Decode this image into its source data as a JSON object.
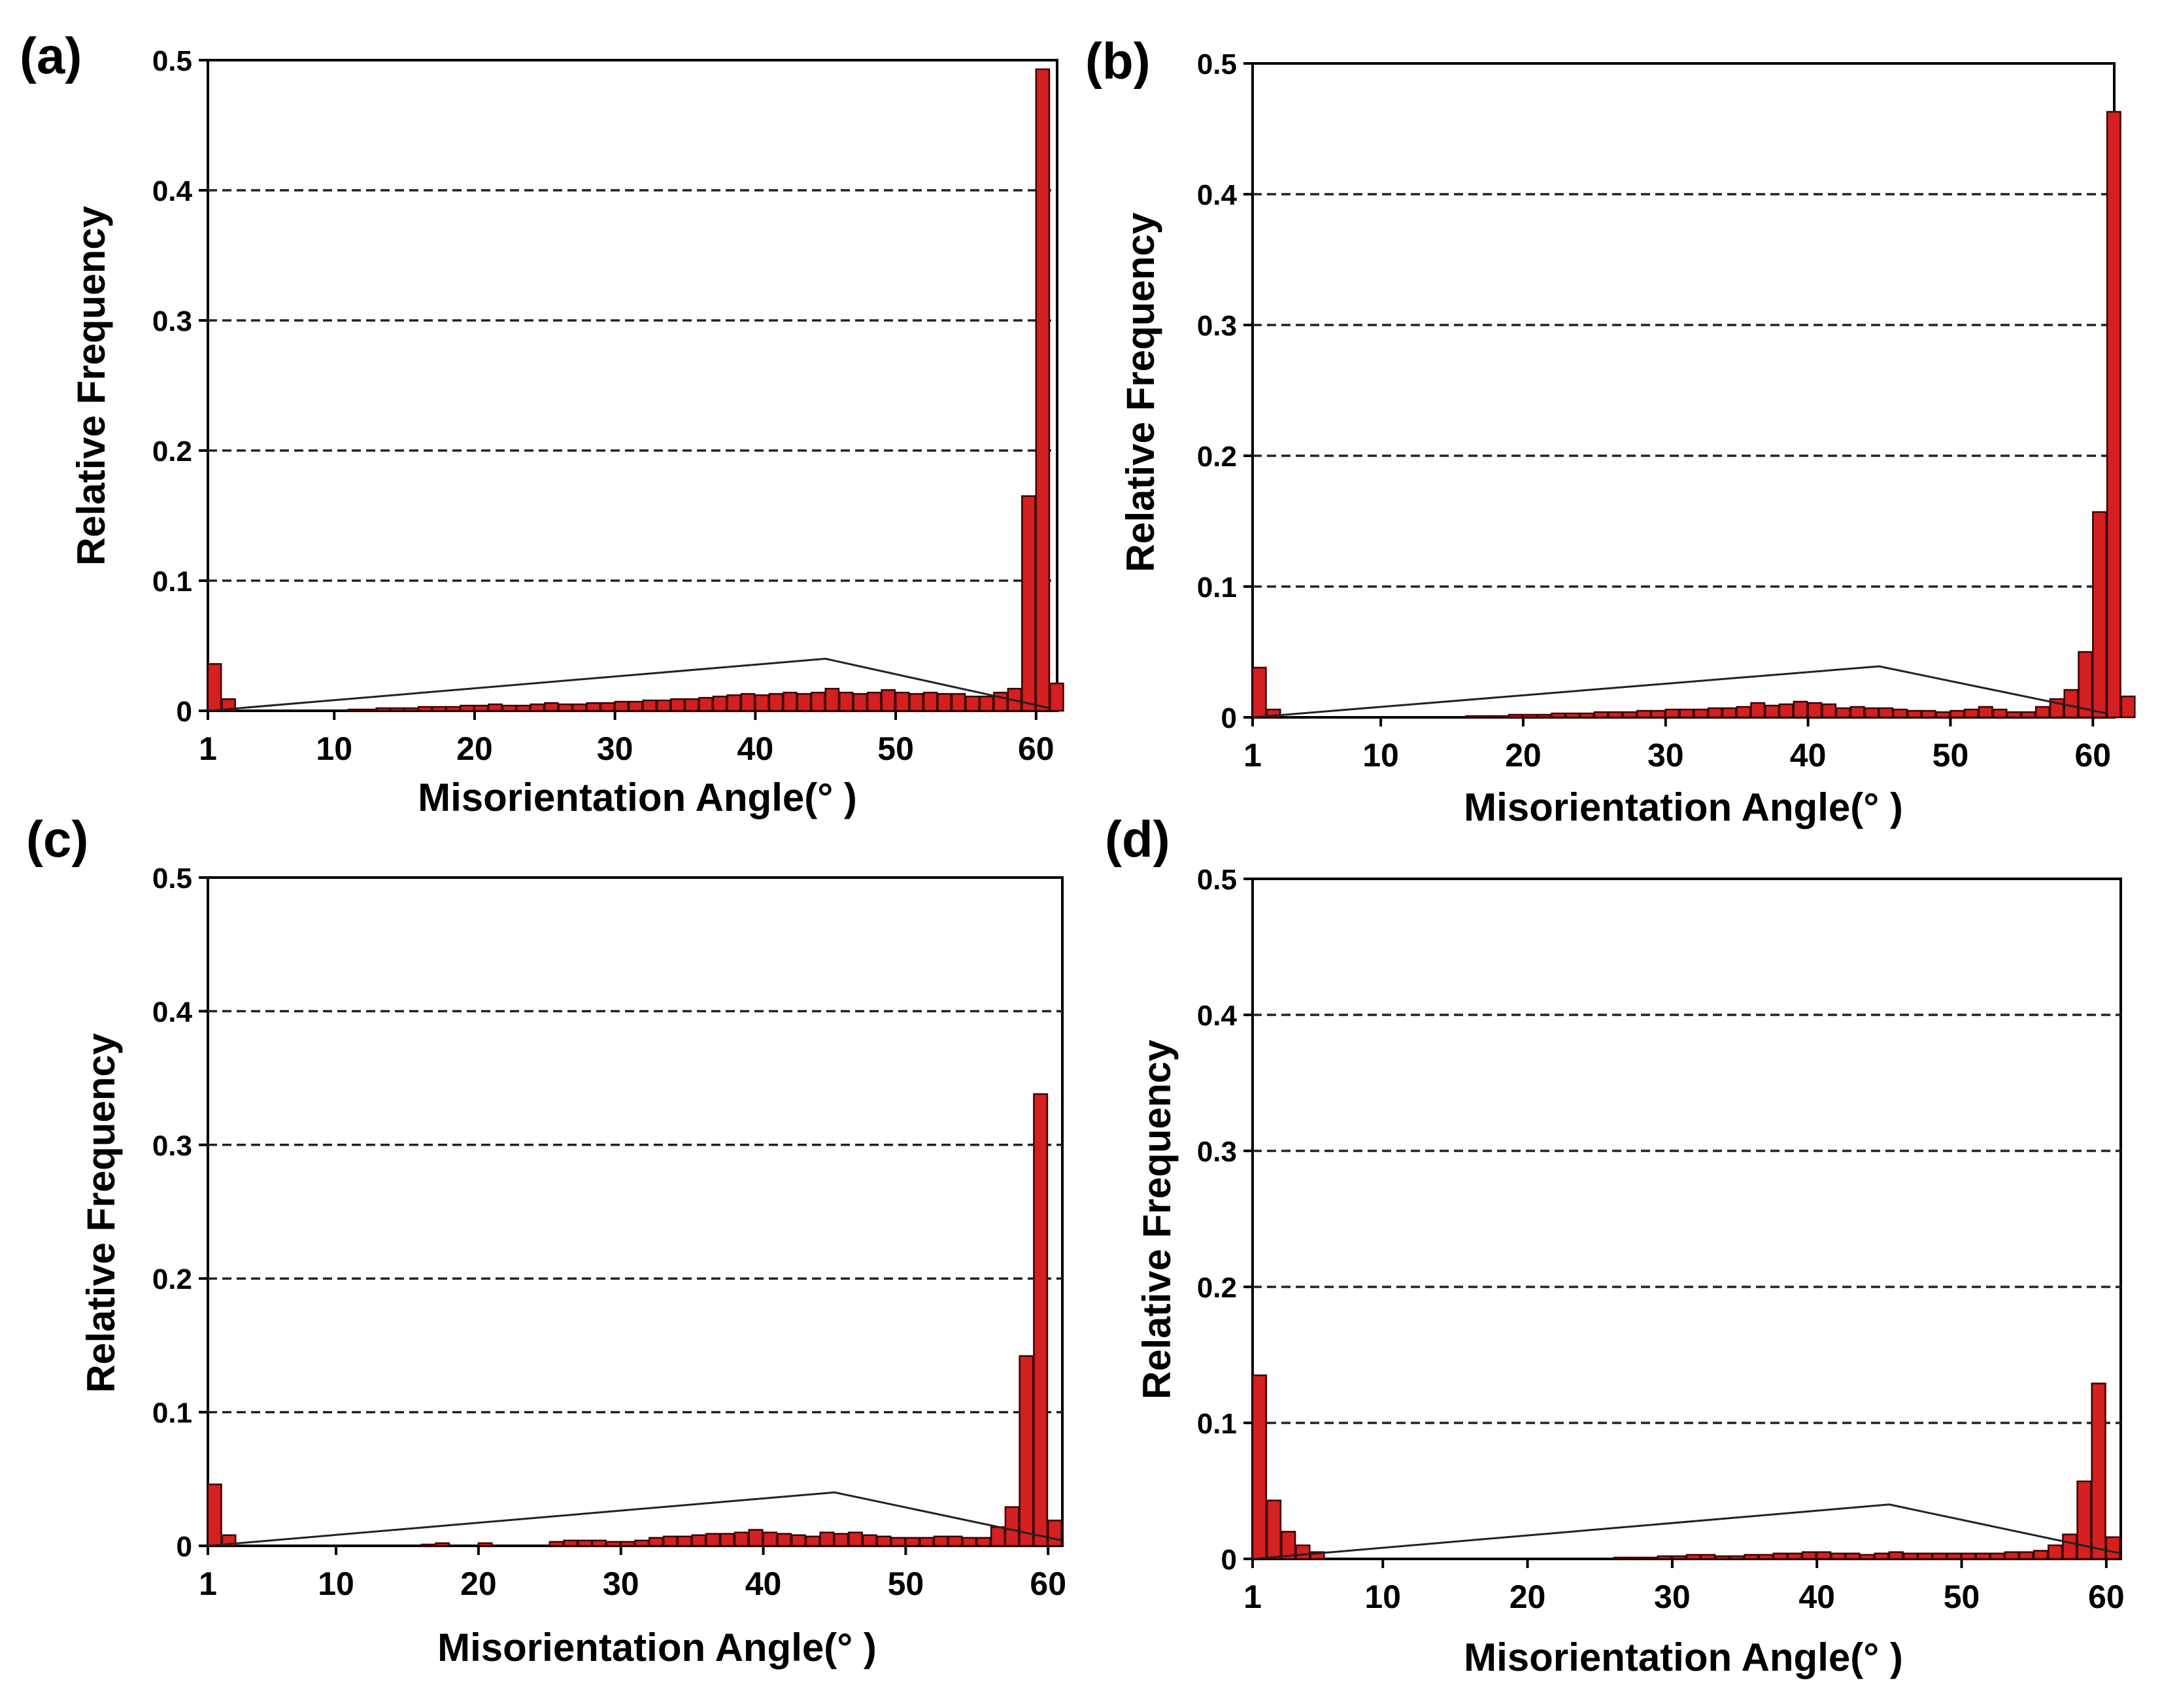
{
  "figure": {
    "background": "#ffffff",
    "bar_color": "#d42020",
    "bar_edge": "#3a0000",
    "axis_color": "#000000",
    "grid_color": "#222222"
  },
  "chart_data": [
    {
      "panel": "(a)",
      "type": "bar",
      "xlabel": "Misorientation Angle(°  )",
      "ylabel": "Relative Frequency",
      "xlim": [
        1,
        61.5
      ],
      "ylim": [
        0,
        0.5
      ],
      "xticks": [
        1,
        10,
        20,
        30,
        40,
        50,
        60
      ],
      "yticks": [
        {
          "v": 0,
          "label": "0"
        },
        {
          "v": 0.1,
          "label": "0.1"
        },
        {
          "v": 0.2,
          "label": "0.2"
        },
        {
          "v": 0.3,
          "label": "0.3"
        },
        {
          "v": 0.4,
          "label": "0.4"
        },
        {
          "v": 0.5,
          "label": "0.5"
        }
      ],
      "grid": "dashed-horizontal",
      "bin_start": 1,
      "bin_width": 1,
      "values": [
        0.036,
        0.009,
        0,
        0,
        0,
        0,
        0,
        0,
        0,
        0,
        0.001,
        0.001,
        0.002,
        0.002,
        0.002,
        0.003,
        0.003,
        0.003,
        0.004,
        0.004,
        0.005,
        0.004,
        0.004,
        0.005,
        0.006,
        0.005,
        0.005,
        0.006,
        0.006,
        0.007,
        0.007,
        0.008,
        0.008,
        0.009,
        0.009,
        0.01,
        0.011,
        0.012,
        0.013,
        0.012,
        0.013,
        0.014,
        0.013,
        0.014,
        0.017,
        0.014,
        0.013,
        0.014,
        0.016,
        0.014,
        0.013,
        0.014,
        0.013,
        0.013,
        0.011,
        0.011,
        0.014,
        0.017,
        0.165,
        0.493,
        0.021
      ],
      "reference_curve": {
        "x": [
          1,
          45,
          61
        ],
        "y": [
          0,
          0.04,
          0.002
        ]
      }
    },
    {
      "panel": "(b)",
      "type": "bar",
      "xlabel": "Misorientation Angle(°  )",
      "ylabel": "Relative Frequency",
      "xlim": [
        1,
        61.5
      ],
      "ylim": [
        0,
        0.5
      ],
      "xticks": [
        1,
        10,
        20,
        30,
        40,
        50,
        60
      ],
      "yticks": [
        {
          "v": 0,
          "label": "0"
        },
        {
          "v": 0.1,
          "label": "0.1"
        },
        {
          "v": 0.2,
          "label": "0.2"
        },
        {
          "v": 0.3,
          "label": "0.3"
        },
        {
          "v": 0.4,
          "label": "0.4"
        },
        {
          "v": 0.5,
          "label": "0.5"
        }
      ],
      "grid": "dashed-horizontal",
      "bin_start": 1,
      "bin_width": 1,
      "values": [
        0.038,
        0.006,
        0,
        0,
        0,
        0,
        0,
        0,
        0,
        0,
        0,
        0,
        0,
        0,
        0,
        0.001,
        0.001,
        0.001,
        0.002,
        0.002,
        0.002,
        0.003,
        0.003,
        0.003,
        0.004,
        0.004,
        0.004,
        0.005,
        0.005,
        0.006,
        0.006,
        0.006,
        0.007,
        0.007,
        0.008,
        0.011,
        0.009,
        0.01,
        0.012,
        0.011,
        0.01,
        0.007,
        0.008,
        0.007,
        0.007,
        0.006,
        0.005,
        0.005,
        0.004,
        0.005,
        0.006,
        0.008,
        0.006,
        0.004,
        0.004,
        0.008,
        0.014,
        0.021,
        0.05,
        0.157,
        0.463,
        0.016
      ],
      "reference_curve": {
        "x": [
          1,
          45,
          61
        ],
        "y": [
          0,
          0.039,
          0.003
        ]
      }
    },
    {
      "panel": "(c)",
      "type": "bar",
      "xlabel": "Misorientation Angle(°  )",
      "ylabel": "Relative Frequency",
      "xlim": [
        1,
        61
      ],
      "ylim": [
        0,
        0.5
      ],
      "xticks": [
        1,
        10,
        20,
        30,
        40,
        50,
        60
      ],
      "yticks": [
        {
          "v": 0,
          "label": "0"
        },
        {
          "v": 0.1,
          "label": "0.1"
        },
        {
          "v": 0.2,
          "label": "0.2"
        },
        {
          "v": 0.3,
          "label": "0.3"
        },
        {
          "v": 0.4,
          "label": "0.4"
        },
        {
          "v": 0.5,
          "label": "0.5"
        }
      ],
      "grid": "dashed-horizontal",
      "bin_start": 1,
      "bin_width": 1,
      "values": [
        0.046,
        0.008,
        0,
        0,
        0,
        0,
        0,
        0,
        0,
        0,
        0,
        0,
        0,
        0,
        0,
        0.001,
        0.002,
        0,
        0,
        0.002,
        0,
        0,
        0,
        0,
        0.003,
        0.004,
        0.004,
        0.004,
        0.003,
        0.003,
        0.004,
        0.006,
        0.007,
        0.007,
        0.008,
        0.009,
        0.009,
        0.01,
        0.012,
        0.01,
        0.009,
        0.008,
        0.007,
        0.01,
        0.009,
        0.01,
        0.008,
        0.007,
        0.006,
        0.006,
        0.006,
        0.007,
        0.007,
        0.006,
        0.006,
        0.014,
        0.029,
        0.142,
        0.338,
        0.019
      ],
      "reference_curve": {
        "x": [
          1,
          45,
          61
        ],
        "y": [
          0,
          0.04,
          0.004
        ]
      }
    },
    {
      "panel": "(d)",
      "type": "bar",
      "xlabel": "Misorientation Angle(°  )",
      "ylabel": "Relative Frequency",
      "xlim": [
        1,
        61
      ],
      "ylim": [
        0,
        0.5
      ],
      "xticks": [
        1,
        10,
        20,
        30,
        40,
        50,
        60
      ],
      "yticks": [
        {
          "v": 0,
          "label": "0"
        },
        {
          "v": 0.1,
          "label": "0.1"
        },
        {
          "v": 0.2,
          "label": "0.2"
        },
        {
          "v": 0.3,
          "label": "0.3"
        },
        {
          "v": 0.4,
          "label": "0.4"
        },
        {
          "v": 0.5,
          "label": "0.5"
        }
      ],
      "grid": "dashed-horizontal",
      "bin_start": 1,
      "bin_width": 1,
      "values": [
        0.135,
        0.043,
        0.02,
        0.01,
        0.005,
        0,
        0,
        0,
        0,
        0,
        0,
        0,
        0,
        0,
        0,
        0,
        0,
        0,
        0,
        0,
        0,
        0,
        0,
        0,
        0,
        0.001,
        0.001,
        0.001,
        0.002,
        0.002,
        0.003,
        0.003,
        0.002,
        0.002,
        0.003,
        0.003,
        0.004,
        0.004,
        0.005,
        0.005,
        0.004,
        0.004,
        0.003,
        0.004,
        0.005,
        0.004,
        0.004,
        0.004,
        0.004,
        0.004,
        0.004,
        0.004,
        0.005,
        0.005,
        0.006,
        0.01,
        0.018,
        0.057,
        0.129,
        0.016
      ],
      "reference_curve": {
        "x": [
          1,
          45,
          61
        ],
        "y": [
          0,
          0.04,
          0.004
        ]
      }
    }
  ]
}
